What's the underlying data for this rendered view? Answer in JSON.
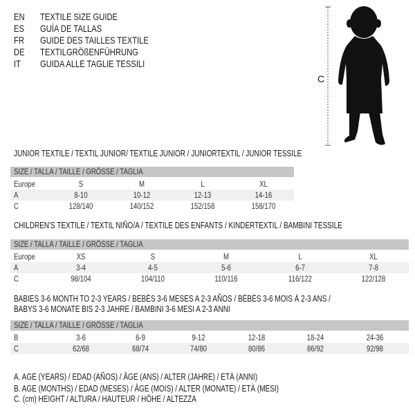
{
  "languages": [
    {
      "code": "EN",
      "text": "TEXTILE SIZE GUIDE"
    },
    {
      "code": "ES",
      "text": "GUÍA DE TALLAS"
    },
    {
      "code": "FR",
      "text": "GUIDE DES TAILLES TEXTILE"
    },
    {
      "code": "DE",
      "text": "TEXTILGRÖßENFÜHRUNG"
    },
    {
      "code": "IT",
      "text": "GUIDA ALLE TAGLIE TESSILI"
    }
  ],
  "figure": {
    "label": "C"
  },
  "size_header": "SIZE / TALLA / TAILLE / GRÖSSE / TAGLIA",
  "junior": {
    "title": "JUNIOR TEXTILE / TEXTIL JUNIOR/ TEXTILE JUNIOR / JUNIORTEXTIL / JUNIOR TESSILE",
    "rows": [
      {
        "label": "Europe",
        "values": [
          "S",
          "M",
          "L",
          "XL"
        ]
      },
      {
        "label": "A",
        "values": [
          "8-10",
          "10-12",
          "12-13",
          "14-16"
        ]
      },
      {
        "label": "C",
        "values": [
          "128/140",
          "140/152",
          "152/158",
          "158/170"
        ]
      }
    ]
  },
  "children": {
    "title": "CHILDREN'S TEXTILE / TEXTIL NIÑO/A / TEXTILE DES ENFANTS / KINDERTEXTIL / BAMBINI TESSILE",
    "rows": [
      {
        "label": "Europe",
        "values": [
          "XS",
          "S",
          "M",
          "L",
          "XL"
        ]
      },
      {
        "label": "A",
        "values": [
          "3-4",
          "4-5",
          "5-6",
          "6-7",
          "7-8"
        ]
      },
      {
        "label": "C",
        "values": [
          "98/104",
          "104/110",
          "110/116",
          "116/122",
          "122/128"
        ]
      }
    ]
  },
  "babies": {
    "title_line1": "BABIES 3-6 MONTH TO 2-3 YEARS / BEBÉS 3-6 MESES A 2-3 AÑOS / BÉBÉS 3-6 MOIS À 2-3 ANS /",
    "title_line2": "BABYS 3-6 MONATE BIS 2-3 JAHRE / BAMBINI 3-6 MESI A 2-3 ANNI",
    "rows": [
      {
        "label": "B",
        "values": [
          "3-6",
          "6-9",
          "9-12",
          "12-18",
          "18-24",
          "24-36"
        ]
      },
      {
        "label": "C",
        "values": [
          "62/68",
          "68/74",
          "74/80",
          "80/86",
          "86/92",
          "92/98"
        ]
      }
    ]
  },
  "legend": [
    "A. AGE (YEARS) / EDAD (AÑOS) / ÂGE (ANS) / ALTER (JAHRE) / ETÀ (ANNI)",
    "B. AGE (MONTHS) / EDAD (MESES) / ÂGE (MOIS) / ALTER (MONATE) / ETÀ (MESI)",
    "C. (cm) HEIGHT / ALTURA / HAUTEUR / HÖHE / ALTEZZA"
  ]
}
